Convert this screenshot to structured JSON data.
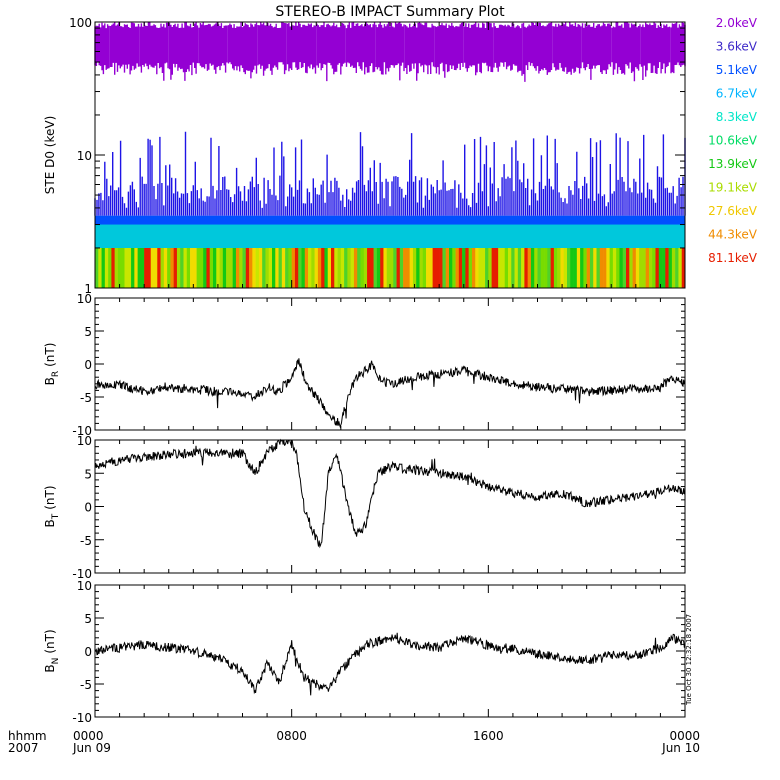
{
  "title": "STEREO-B IMPACT Summary Plot",
  "footer": {
    "time_label": "hhmm",
    "year_label": "2007",
    "x_ticks": [
      "0000",
      "0800",
      "1600",
      "0000"
    ],
    "date_start": "Jun 09",
    "date_end": "Jun 10",
    "timestamp": "Tue Oct 30 12:32:18 2007"
  },
  "chart_data": [
    {
      "type": "line",
      "panel": "STE D0",
      "ylabel": "STE D0 (keV)",
      "y_scale": "log",
      "ylim": [
        1,
        100
      ],
      "y_ticks": [
        "1",
        "10",
        "100"
      ],
      "xlim_hours": [
        0,
        24
      ],
      "legend_placement": "right",
      "legend": [
        {
          "name": "2.0keV",
          "color": "#9400d3"
        },
        {
          "name": "3.6keV",
          "color": "#3c28c8"
        },
        {
          "name": "5.1keV",
          "color": "#0050ff"
        },
        {
          "name": "6.7keV",
          "color": "#00b4ff"
        },
        {
          "name": "8.3keV",
          "color": "#00e6c8"
        },
        {
          "name": "10.6keV",
          "color": "#00dc64"
        },
        {
          "name": "13.9keV",
          "color": "#14c814"
        },
        {
          "name": "19.1keV",
          "color": "#aadc00"
        },
        {
          "name": "27.6keV",
          "color": "#f0c800"
        },
        {
          "name": "44.3keV",
          "color": "#f08c00"
        },
        {
          "name": "81.1keV",
          "color": "#e61e00"
        }
      ],
      "bands": [
        {
          "name": "2.0keV",
          "low": 40,
          "high": 100,
          "typical_low": 50,
          "typical_high": 90
        },
        {
          "name": "3.6keV",
          "low": 3.5,
          "high": 15,
          "typical_low": 4,
          "typical_high": 7
        },
        {
          "name": "5.1keV",
          "low": 2.0,
          "high": 3.5
        },
        {
          "name": "6.7keV",
          "low": 1.0,
          "high": 2.0
        }
      ]
    },
    {
      "type": "line",
      "panel": "BR",
      "ylabel": "B",
      "ylabel_sub": "R",
      "ylabel_unit": "(nT)",
      "ylim": [
        -10,
        10
      ],
      "y_ticks": [
        "10",
        "5",
        "0",
        "-5",
        "-10"
      ],
      "x_hours": [
        0,
        0.5,
        1,
        1.5,
        2,
        3,
        4,
        5,
        6,
        6.5,
        7,
        7.5,
        8,
        8.3,
        8.6,
        9,
        9.3,
        9.6,
        10,
        10.3,
        10.6,
        11,
        11.3,
        11.6,
        12,
        13,
        14,
        15,
        16,
        17,
        18,
        19,
        20,
        21,
        22,
        23,
        23.5,
        24
      ],
      "values": [
        -3,
        -3.5,
        -3,
        -3.8,
        -4,
        -3.6,
        -3.8,
        -4.2,
        -4.5,
        -5,
        -3.5,
        -4,
        -2,
        0.5,
        -3,
        -5,
        -6.5,
        -8.5,
        -9,
        -5,
        -2,
        -1,
        0,
        -2.5,
        -3,
        -2,
        -1.5,
        -1,
        -2,
        -3,
        -3.5,
        -3.8,
        -4.2,
        -4,
        -3.8,
        -3.5,
        -2,
        -3
      ]
    },
    {
      "type": "line",
      "panel": "BT",
      "ylabel": "B",
      "ylabel_sub": "T",
      "ylabel_unit": "(nT)",
      "ylim": [
        -10,
        10
      ],
      "y_ticks": [
        "10",
        "5",
        "0",
        "-5",
        "-10"
      ],
      "x_hours": [
        0,
        1,
        2,
        3,
        4,
        5,
        6,
        6.5,
        7,
        7.5,
        8,
        8.2,
        8.5,
        9,
        9.2,
        9.5,
        9.8,
        10,
        10.3,
        10.6,
        11,
        11.5,
        12,
        13,
        14,
        15,
        16,
        17,
        18,
        19,
        20,
        21,
        22,
        23,
        23.5,
        24
      ],
      "values": [
        6,
        7,
        7.5,
        7.8,
        8,
        8,
        8,
        5,
        8,
        9.5,
        10,
        8,
        0,
        -5,
        -6,
        5,
        8,
        5,
        0,
        -4,
        -3,
        5,
        6,
        5.5,
        5,
        4.5,
        3,
        2,
        1.5,
        2,
        0.5,
        1,
        1.5,
        2.5,
        3,
        2
      ]
    },
    {
      "type": "line",
      "panel": "BN",
      "ylabel": "B",
      "ylabel_sub": "N",
      "ylabel_unit": "(nT)",
      "ylim": [
        -10,
        10
      ],
      "y_ticks": [
        "10",
        "5",
        "0",
        "-5",
        "-10"
      ],
      "x_hours": [
        0,
        1,
        2,
        3,
        4,
        5,
        6,
        6.5,
        7,
        7.5,
        8,
        8.5,
        9,
        9.5,
        10,
        10.5,
        11,
        12,
        13,
        14,
        15,
        16,
        17,
        18,
        19,
        20,
        21,
        22,
        23,
        23.5,
        24
      ],
      "values": [
        0,
        0.5,
        1,
        0.5,
        0,
        -1,
        -3,
        -6,
        -2,
        -5,
        1,
        -4,
        -5,
        -6,
        -3,
        -1,
        1,
        2,
        1,
        0.5,
        2,
        0.8,
        0.3,
        -0.5,
        -1,
        -1.5,
        -0.5,
        -0.8,
        0.5,
        2,
        1
      ]
    }
  ]
}
